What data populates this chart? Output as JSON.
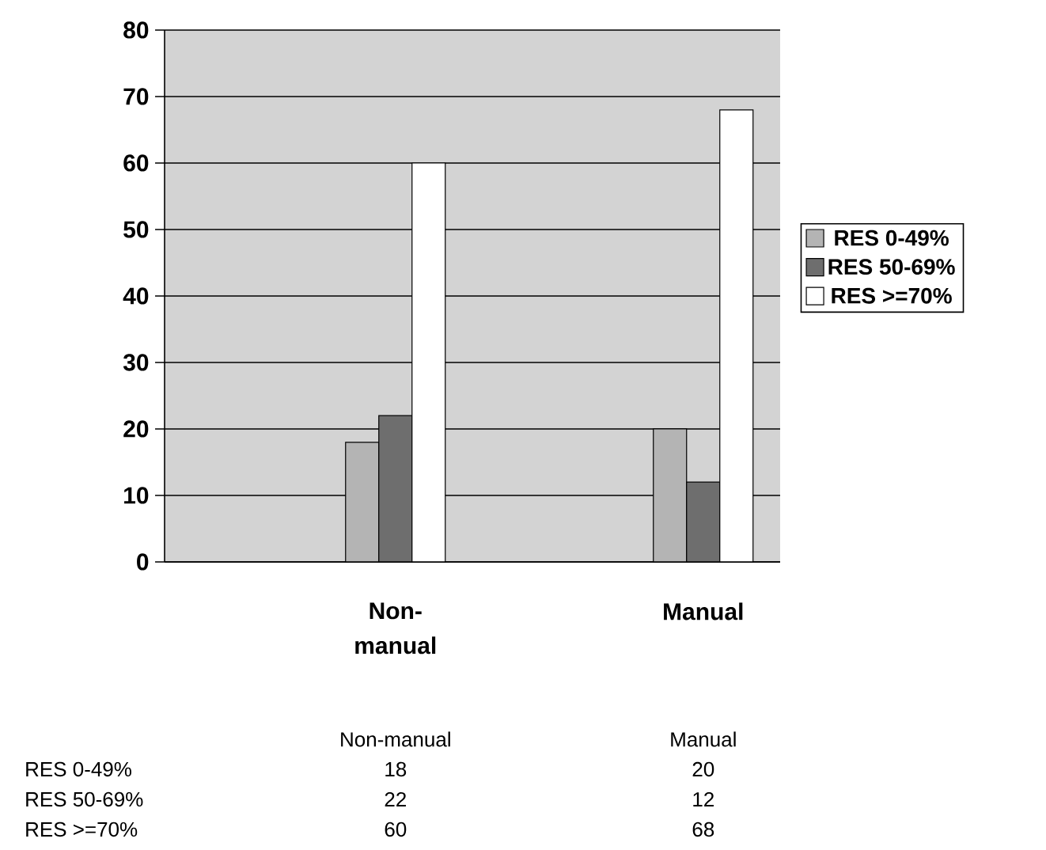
{
  "chart_data": {
    "type": "bar",
    "categories": [
      null,
      "Non-manual",
      null,
      "Manual"
    ],
    "series": [
      {
        "name": "RES 0-49%",
        "color": "#b4b4b4",
        "values": [
          null,
          18,
          null,
          20
        ]
      },
      {
        "name": "RES 50-69%",
        "color": "#6e6e6e",
        "values": [
          null,
          22,
          null,
          12
        ]
      },
      {
        "name": "RES >=70%",
        "color": "#ffffff",
        "values": [
          null,
          60,
          null,
          68
        ]
      }
    ],
    "ylim": [
      0,
      80
    ],
    "yticks": [
      0,
      10,
      20,
      30,
      40,
      50,
      60,
      70,
      80
    ],
    "grid": "y",
    "legend": "right",
    "data_labels": true
  }
}
